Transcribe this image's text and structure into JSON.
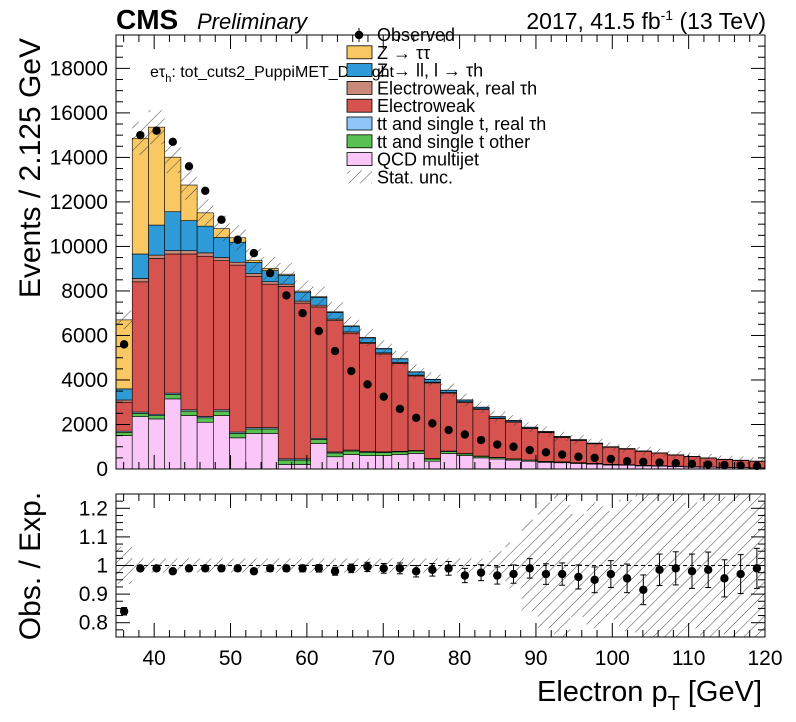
{
  "header": {
    "cms": "CMS",
    "preliminary": "Preliminary",
    "lumi_prefix": "2017, 41.5 fb",
    "lumi_exp": "-1",
    "lumi_suffix": " (13 TeV)"
  },
  "category": {
    "prefix": "eτ",
    "sub": "h",
    "suffix": ": tot_cuts2_PuppiMET_DFTight"
  },
  "legend": [
    {
      "label": "Observed",
      "kind": "marker"
    },
    {
      "label": "Z → ττ",
      "color": "#f9c863",
      "kind": "fill"
    },
    {
      "label": "Z → ll, l → τh",
      "color": "#2f9ad8",
      "kind": "fill"
    },
    {
      "label": "Electroweak, real  τh",
      "color": "#c98979",
      "kind": "fill"
    },
    {
      "label": "Electroweak",
      "color": "#d6534f",
      "kind": "fill"
    },
    {
      "label": "tt and single t, real  τh",
      "color": "#8fc6f8",
      "kind": "fill"
    },
    {
      "label": "tt and single t other",
      "color": "#59c151",
      "kind": "fill"
    },
    {
      "label": "QCD multijet",
      "color": "#fac6f8",
      "kind": "fill"
    },
    {
      "label": "Stat. unc.",
      "kind": "hatch"
    }
  ],
  "chart_data": [
    {
      "type": "stacked-bar",
      "ylabel": "Events / 2.125 GeV",
      "xlim": [
        35,
        120
      ],
      "ylim": [
        0,
        19500
      ],
      "yticks": [
        0,
        2000,
        4000,
        6000,
        8000,
        10000,
        12000,
        14000,
        16000,
        18000
      ],
      "bin_edges": [
        35,
        37.125,
        39.25,
        41.375,
        43.5,
        45.625,
        47.75,
        49.875,
        52,
        54.125,
        56.25,
        58.375,
        60.5,
        62.625,
        64.75,
        66.875,
        69,
        71.125,
        73.25,
        75.375,
        77.5,
        79.625,
        81.75,
        83.875,
        86,
        88.125,
        90.25,
        92.375,
        94.5,
        96.625,
        98.75,
        100.875,
        103,
        105.125,
        107.25,
        109.375,
        111.5,
        113.625,
        115.75,
        117.875,
        120
      ],
      "stack_order": [
        "QCD multijet",
        "tt and single t other",
        "tt and single t, real  τh",
        "Electroweak",
        "Electroweak, real  τh",
        "Z → ll, l → τh",
        "Z → ττ"
      ],
      "stacks": {
        "QCD multijet": [
          1500,
          2350,
          2250,
          3150,
          2400,
          2100,
          2400,
          1400,
          1600,
          1600,
          200,
          200,
          1150,
          550,
          650,
          600,
          600,
          650,
          700,
          350,
          700,
          600,
          500,
          450,
          400,
          350,
          300,
          280,
          250,
          220,
          180,
          170,
          140,
          130,
          110,
          90,
          80,
          70,
          60,
          50
        ],
        "tt and single t other": [
          150,
          150,
          150,
          200,
          200,
          200,
          200,
          200,
          200,
          200,
          200,
          200,
          180,
          170,
          160,
          150,
          140,
          120,
          110,
          100,
          90,
          80,
          70,
          60,
          50,
          45,
          40,
          35,
          30,
          28,
          25,
          22,
          20,
          18,
          15,
          12,
          10,
          8,
          6,
          5
        ],
        "tt and single t, real  τh": [
          50,
          60,
          60,
          60,
          60,
          60,
          60,
          60,
          60,
          55,
          55,
          55,
          50,
          45,
          40,
          35,
          30,
          25,
          22,
          20,
          18,
          15,
          12,
          10,
          8,
          7,
          6,
          5,
          4,
          4,
          3,
          3,
          3,
          2,
          2,
          2,
          2,
          1,
          1,
          1
        ],
        "Electroweak": [
          1300,
          5850,
          7000,
          6250,
          7000,
          7200,
          6700,
          7500,
          6800,
          6450,
          7750,
          7000,
          5900,
          5900,
          5250,
          4850,
          4400,
          3950,
          3350,
          3400,
          2600,
          2300,
          2100,
          1750,
          1650,
          1420,
          1290,
          1100,
          1000,
          880,
          770,
          700,
          630,
          560,
          500,
          450,
          400,
          350,
          320,
          290
        ],
        "Electroweak, real  τh": [
          100,
          150,
          150,
          150,
          150,
          150,
          140,
          130,
          120,
          110,
          100,
          90,
          80,
          70,
          60,
          55,
          50,
          45,
          40,
          35,
          30,
          25,
          22,
          20,
          18,
          15,
          12,
          10,
          9,
          8,
          7,
          6,
          5,
          5,
          4,
          4,
          3,
          3,
          3,
          2
        ],
        "Z → ll, l → τh": [
          500,
          1100,
          1350,
          1750,
          1350,
          1200,
          900,
          900,
          500,
          500,
          400,
          400,
          350,
          300,
          250,
          200,
          180,
          160,
          140,
          120,
          100,
          80,
          70,
          60,
          50,
          40,
          35,
          30,
          25,
          20,
          15,
          15,
          12,
          10,
          8,
          8,
          6,
          5,
          4,
          4
        ],
        "Z → ττ": [
          3100,
          5200,
          4400,
          2450,
          1600,
          600,
          400,
          200,
          100,
          100,
          50,
          50,
          30,
          30,
          20,
          20,
          15,
          10,
          8,
          8,
          5,
          5,
          5,
          5,
          4,
          3,
          3,
          2,
          2,
          2,
          2,
          1,
          1,
          1,
          1,
          1,
          1,
          1,
          1,
          1
        ]
      },
      "observed": [
        5600,
        15000,
        15200,
        14700,
        13600,
        12500,
        11200,
        10300,
        9700,
        8800,
        7800,
        7000,
        6200,
        5300,
        4400,
        3800,
        3250,
        2700,
        2300,
        2050,
        1750,
        1550,
        1300,
        1100,
        1000,
        850,
        750,
        650,
        550,
        500,
        450,
        350,
        320,
        290,
        260,
        230,
        200,
        180,
        160,
        140
      ],
      "stat_unc_frac": 0.04
    },
    {
      "type": "ratio",
      "xlabel": "Electron p_T [GeV]",
      "ylabel": "Obs. / Exp.",
      "xlim": [
        35,
        120
      ],
      "ylim": [
        0.75,
        1.25
      ],
      "yticks": [
        0.8,
        0.9,
        1,
        1.1,
        1.2
      ],
      "xticks": [
        40,
        50,
        60,
        70,
        80,
        90,
        100,
        110,
        120
      ],
      "ratio": [
        0.84,
        0.99,
        0.99,
        0.98,
        0.99,
        0.99,
        0.99,
        0.99,
        0.98,
        0.99,
        0.99,
        0.99,
        0.99,
        0.98,
        0.99,
        0.995,
        0.99,
        0.99,
        0.98,
        0.985,
        0.99,
        0.965,
        0.975,
        0.965,
        0.97,
        0.99,
        0.97,
        0.97,
        0.96,
        0.95,
        0.97,
        0.955,
        0.915,
        0.985,
        0.99,
        0.98,
        0.985,
        0.955,
        0.97,
        0.99
      ],
      "ratio_err": [
        0.013,
        0.008,
        0.008,
        0.008,
        0.009,
        0.009,
        0.009,
        0.01,
        0.01,
        0.011,
        0.011,
        0.012,
        0.013,
        0.014,
        0.015,
        0.016,
        0.017,
        0.019,
        0.02,
        0.022,
        0.024,
        0.025,
        0.028,
        0.03,
        0.032,
        0.034,
        0.036,
        0.039,
        0.042,
        0.045,
        0.047,
        0.05,
        0.052,
        0.055,
        0.058,
        0.06,
        0.062,
        0.065,
        0.068,
        0.07
      ],
      "band_half_width": [
        0.065,
        0.025,
        0.025,
        0.025,
        0.025,
        0.025,
        0.025,
        0.025,
        0.025,
        0.025,
        0.025,
        0.025,
        0.025,
        0.025,
        0.025,
        0.025,
        0.025,
        0.025,
        0.025,
        0.025,
        0.025,
        0.025,
        0.025,
        0.05,
        0.08,
        0.16,
        0.22,
        0.25,
        0.18,
        0.22,
        0.19,
        0.23,
        0.27,
        0.25,
        0.27,
        0.22,
        0.25,
        0.24,
        0.25,
        0.25
      ]
    }
  ]
}
